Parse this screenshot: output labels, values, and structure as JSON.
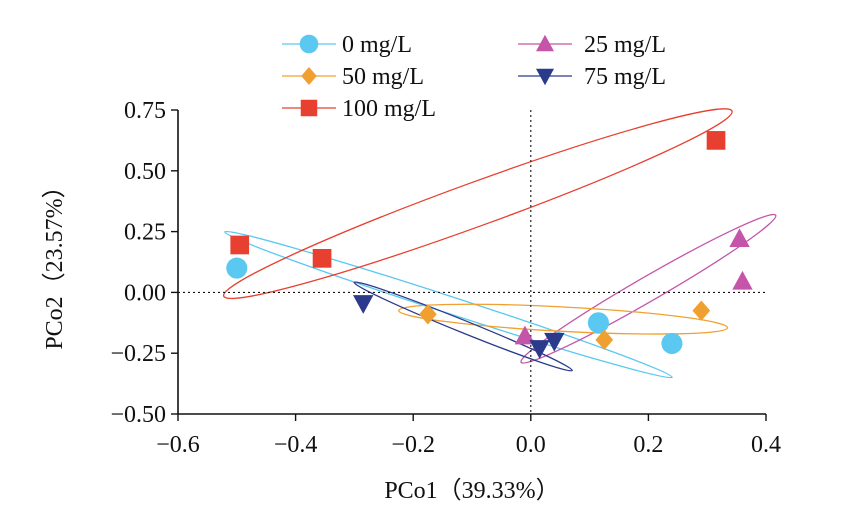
{
  "chart_data": {
    "type": "scatter",
    "xlabel": "PCo1（39.33%）",
    "ylabel": "PCo2（23.57%）",
    "xlim": [
      -0.6,
      0.4
    ],
    "ylim": [
      -0.5,
      0.75
    ],
    "xticks": [
      -0.6,
      -0.4,
      -0.2,
      0.0,
      0.2,
      0.4
    ],
    "yticks": [
      -0.5,
      -0.25,
      0.0,
      0.25,
      0.5,
      0.75
    ],
    "xtick_labels": [
      "−0.6",
      "−0.4",
      "−0.2",
      "0.0",
      "0.2",
      "0.4"
    ],
    "ytick_labels": [
      "−0.50",
      "−0.25",
      "0.00",
      "0.25",
      "0.50",
      "0.75"
    ],
    "grid": false,
    "reference_lines": {
      "x": 0,
      "y": 0,
      "style": "dotted"
    },
    "legend_position": "top",
    "series": [
      {
        "name": "0 mg/L",
        "marker": "circle",
        "color": "#5ac8f0",
        "points": [
          [
            -0.5,
            0.1
          ],
          [
            0.115,
            -0.125
          ],
          [
            0.24,
            -0.21
          ]
        ],
        "ellipse": {
          "cx": -0.14,
          "cy": -0.05,
          "rx": 0.4,
          "ry": 0.035,
          "angle_deg": -18
        }
      },
      {
        "name": "25 mg/L",
        "marker": "triangle-up",
        "color": "#c455a8",
        "points": [
          [
            -0.01,
            -0.18
          ],
          [
            0.355,
            0.22
          ],
          [
            0.36,
            0.045
          ]
        ],
        "ellipse": {
          "cx": 0.2,
          "cy": 0.015,
          "rx": 0.25,
          "ry": 0.05,
          "angle_deg": 30
        }
      },
      {
        "name": "50 mg/L",
        "marker": "diamond",
        "color": "#f0a030",
        "points": [
          [
            -0.175,
            -0.09
          ],
          [
            0.125,
            -0.195
          ],
          [
            0.29,
            -0.075
          ]
        ],
        "ellipse": {
          "cx": 0.055,
          "cy": -0.11,
          "rx": 0.28,
          "ry": 0.05,
          "angle_deg": -3
        }
      },
      {
        "name": "75 mg/L",
        "marker": "triangle-down",
        "color": "#2c3a8c",
        "points": [
          [
            -0.285,
            -0.045
          ],
          [
            0.015,
            -0.23
          ],
          [
            0.04,
            -0.2
          ]
        ],
        "ellipse": {
          "cx": -0.115,
          "cy": -0.14,
          "rx": 0.2,
          "ry": 0.025,
          "angle_deg": -22
        }
      },
      {
        "name": "100 mg/L",
        "marker": "square",
        "color": "#e84030",
        "points": [
          [
            -0.495,
            0.195
          ],
          [
            -0.355,
            0.14
          ],
          [
            0.315,
            0.625
          ]
        ],
        "ellipse": {
          "cx": -0.09,
          "cy": 0.365,
          "rx": 0.46,
          "ry": 0.09,
          "angle_deg": 20
        }
      }
    ]
  }
}
